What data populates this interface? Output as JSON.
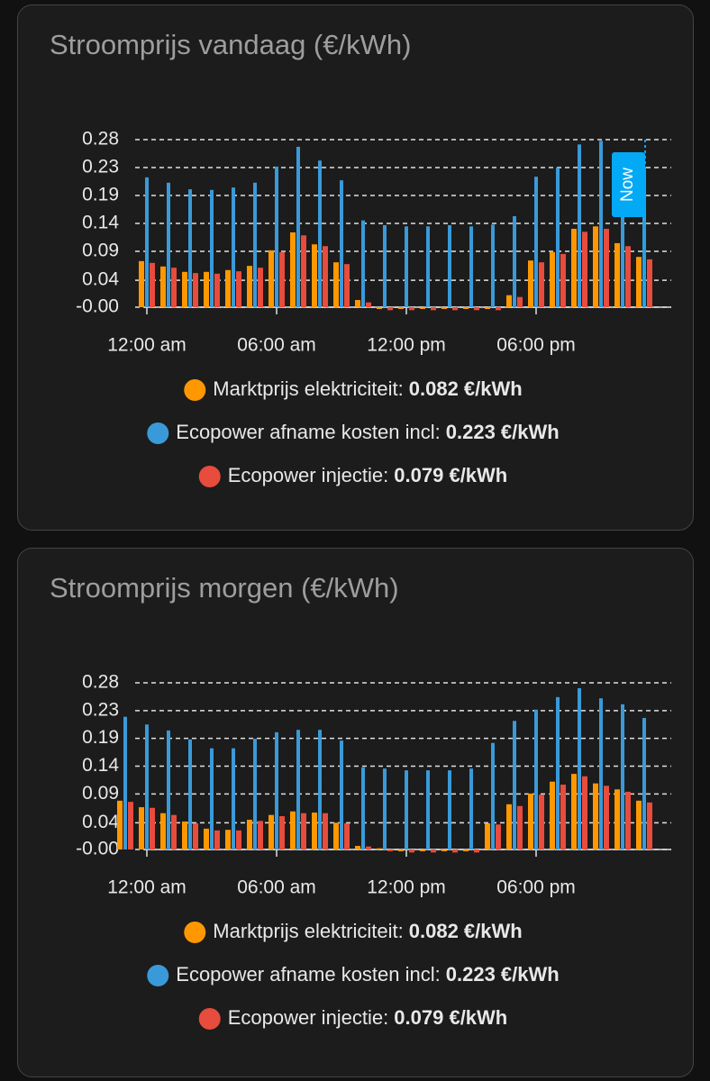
{
  "chart_data": [
    {
      "type": "bar",
      "title": "Stroomprijs vandaag (€/kWh)",
      "categories": [
        "12:00 am",
        null,
        null,
        null,
        null,
        null,
        "06:00 am",
        null,
        null,
        null,
        null,
        null,
        "12:00 pm",
        null,
        null,
        null,
        null,
        null,
        "06:00 pm",
        null,
        null,
        null,
        null,
        null
      ],
      "series": [
        {
          "name": "Marktprijs elektriciteit",
          "color": "#ff9800",
          "legend_value": "0.082 €/kWh",
          "values": [
            0.077,
            0.068,
            0.059,
            0.059,
            0.062,
            0.069,
            0.095,
            0.125,
            0.105,
            0.075,
            0.012,
            -0.003,
            -0.003,
            -0.003,
            -0.003,
            -0.003,
            -0.003,
            0.02,
            0.078,
            0.092,
            0.131,
            0.135,
            0.107,
            0.084
          ]
        },
        {
          "name": "Ecopower afname kosten incl",
          "color": "#3a9ad9",
          "legend_value": "0.223 €/kWh",
          "values": [
            0.217,
            0.208,
            0.197,
            0.196,
            0.2,
            0.208,
            0.235,
            0.268,
            0.245,
            0.212,
            0.145,
            0.137,
            0.135,
            0.135,
            0.137,
            0.135,
            0.138,
            0.152,
            0.218,
            0.233,
            0.272,
            0.278,
            0.242,
            0.23
          ]
        },
        {
          "name": "Ecopower injectie",
          "color": "#e74c3c",
          "legend_value": "0.079 €/kWh",
          "values": [
            0.074,
            0.066,
            0.057,
            0.056,
            0.06,
            0.066,
            0.092,
            0.12,
            0.102,
            0.072,
            0.008,
            -0.005,
            -0.005,
            -0.005,
            -0.005,
            -0.005,
            -0.005,
            0.017,
            0.075,
            0.089,
            0.126,
            0.131,
            0.102,
            0.08
          ]
        }
      ],
      "now_label": "Now",
      "ylim": [
        0,
        0.28
      ],
      "yticks": [
        {
          "value": 0,
          "label": "-0.00"
        },
        {
          "value": 0.0449,
          "label": "0.04"
        },
        {
          "value": 0.0933,
          "label": "0.09"
        },
        0.14,
        {
          "value": 0.1867,
          "label": "0.19"
        },
        {
          "value": 0.2333,
          "label": "0.23"
        },
        0.28
      ],
      "grid": true
    },
    {
      "type": "bar",
      "title": "Stroomprijs morgen (€/kWh)",
      "categories": [
        null,
        "12:00 am",
        null,
        null,
        null,
        null,
        null,
        "06:00 am",
        null,
        null,
        null,
        null,
        null,
        "12:00 pm",
        null,
        null,
        null,
        null,
        null,
        "06:00 pm",
        null,
        null,
        null,
        null,
        null
      ],
      "series": [
        {
          "name": "Marktprijs elektriciteit",
          "color": "#ff9800",
          "legend_value": "0.082 €/kWh",
          "values": [
            0.082,
            0.071,
            0.061,
            0.047,
            0.035,
            0.033,
            0.05,
            0.058,
            0.064,
            0.062,
            0.045,
            0.006,
            0.002,
            -0.003,
            -0.003,
            -0.003,
            -0.003,
            0.044,
            0.076,
            0.094,
            0.114,
            0.127,
            0.111,
            0.101,
            0.082
          ]
        },
        {
          "name": "Ecopower afname kosten incl",
          "color": "#3a9ad9",
          "legend_value": "0.223 €/kWh",
          "values": [
            0.223,
            0.21,
            0.2,
            0.185,
            0.17,
            0.17,
            0.186,
            0.197,
            0.201,
            0.201,
            0.183,
            0.138,
            0.136,
            0.133,
            0.133,
            0.133,
            0.136,
            0.179,
            0.216,
            0.235,
            0.256,
            0.271,
            0.254,
            0.244,
            0.221
          ]
        },
        {
          "name": "Ecopower injectie",
          "color": "#e74c3c",
          "legend_value": "0.079 €/kWh",
          "values": [
            0.08,
            0.07,
            0.058,
            0.044,
            0.032,
            0.032,
            0.048,
            0.056,
            0.061,
            0.061,
            0.044,
            0.005,
            -0.003,
            -0.005,
            -0.005,
            -0.005,
            -0.005,
            0.042,
            0.073,
            0.092,
            0.109,
            0.123,
            0.107,
            0.097,
            0.079
          ]
        }
      ],
      "ylim": [
        0,
        0.28
      ],
      "yticks": [
        {
          "value": 0,
          "label": "-0.00"
        },
        {
          "value": 0.0449,
          "label": "0.04"
        },
        {
          "value": 0.0933,
          "label": "0.09"
        },
        0.14,
        {
          "value": 0.1867,
          "label": "0.19"
        },
        {
          "value": 0.2333,
          "label": "0.23"
        },
        0.28
      ],
      "grid": true
    }
  ]
}
